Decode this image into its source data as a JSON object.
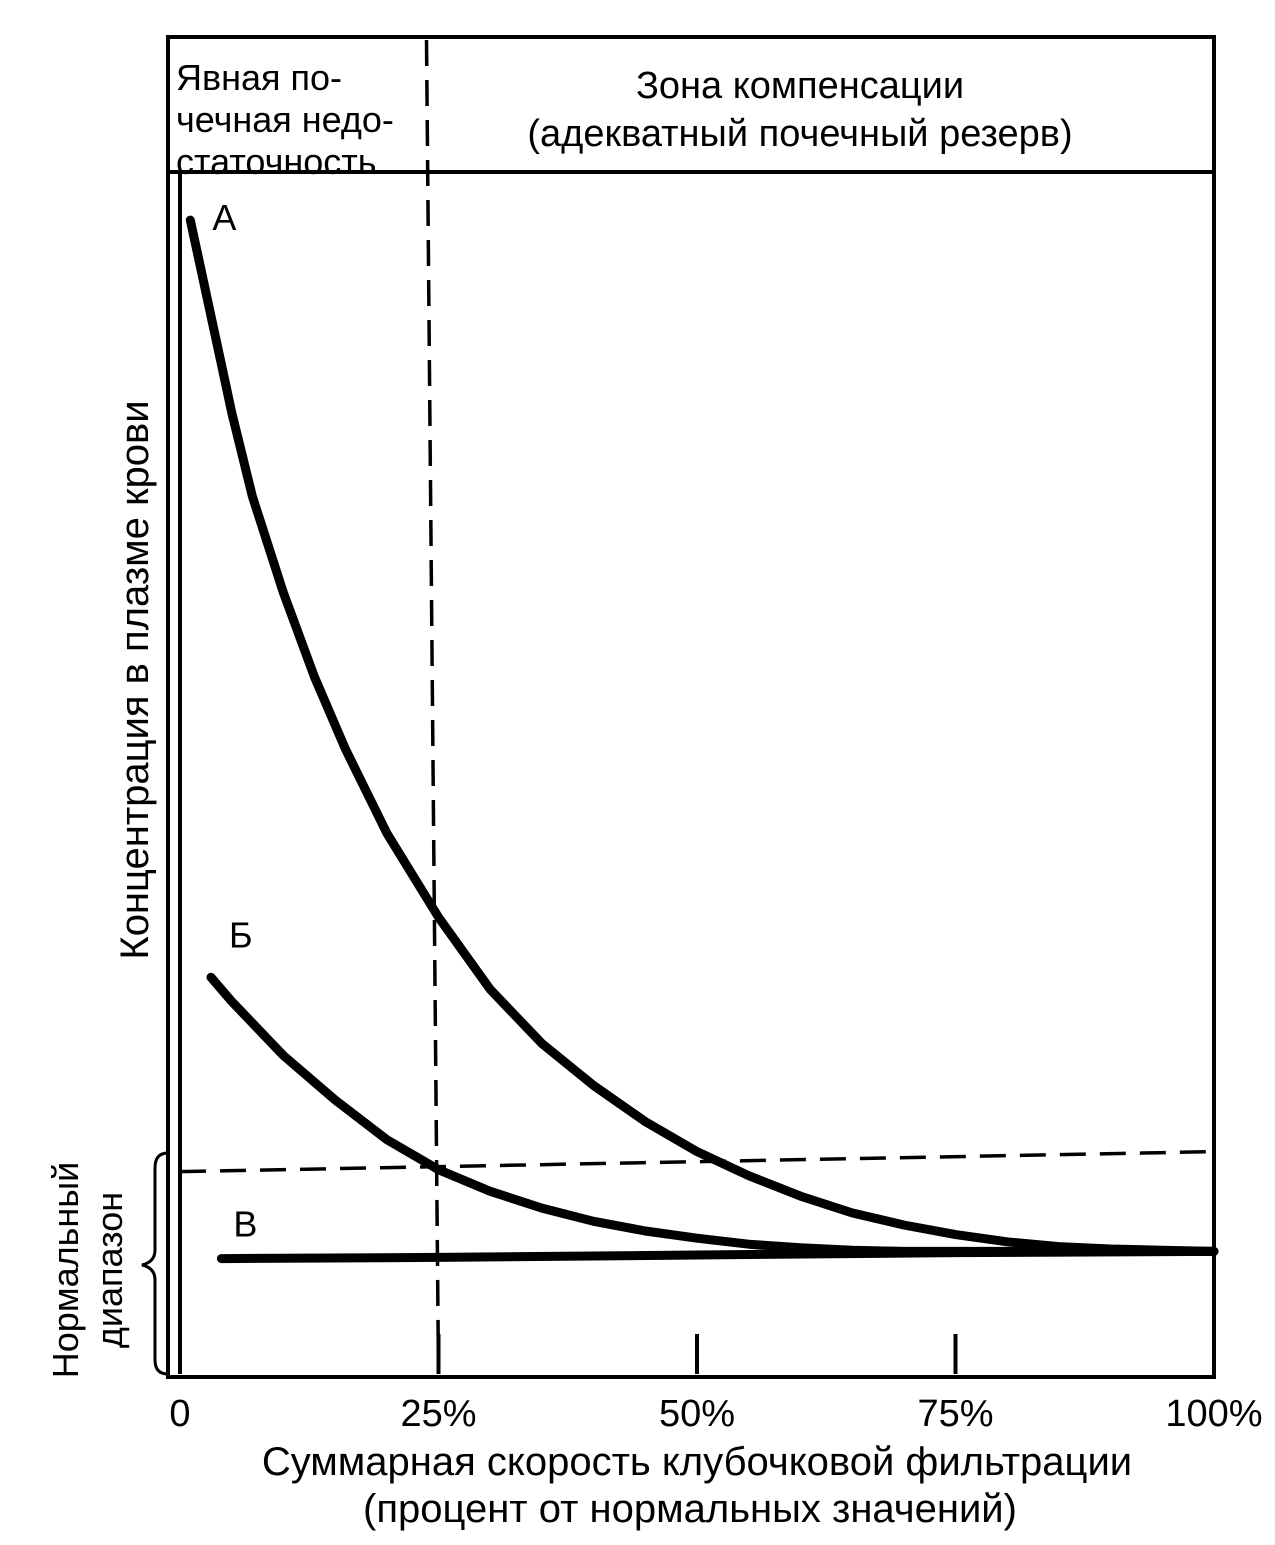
{
  "chart_data": {
    "type": "line",
    "title": "",
    "xlabel_lines": [
      "Суммарная скорость клубочковой фильтрации",
      "(процент от нормальных значений)"
    ],
    "ylabel": "Концентрация в плазме крови",
    "normal_range_label_lines": [
      "Нормальный",
      "диапазон"
    ],
    "x_ticks": [
      {
        "value": 0,
        "label": "0"
      },
      {
        "value": 25,
        "label": "25%"
      },
      {
        "value": 50,
        "label": "50%"
      },
      {
        "value": 75,
        "label": "75%"
      },
      {
        "value": 100,
        "label": "100%"
      }
    ],
    "xlim": [
      0,
      100
    ],
    "ylim": [
      0,
      100
    ],
    "normal_upper_limit": 17.5,
    "zone_divider_x": 25,
    "zones": {
      "failure_lines": [
        "Явная по-",
        "чечная недо-",
        "статочность"
      ],
      "compensation_lines": [
        "Зона компенсации",
        "(адекватный почечный резерв)"
      ]
    },
    "series": [
      {
        "name": "А",
        "x": [
          1,
          2,
          3,
          4,
          5,
          7,
          10,
          13,
          16,
          20,
          25,
          30,
          35,
          40,
          45,
          50,
          55,
          60,
          65,
          70,
          75,
          80,
          85,
          90,
          95,
          100
        ],
        "y": [
          96,
          92,
          88,
          84,
          80,
          73,
          65,
          58,
          52,
          45,
          38,
          32,
          27.5,
          24,
          21,
          18.5,
          16.5,
          14.8,
          13.4,
          12.4,
          11.6,
          11,
          10.6,
          10.4,
          10.3,
          10.2
        ]
      },
      {
        "name": "Б",
        "x": [
          3,
          5,
          10,
          15,
          20,
          25,
          30,
          35,
          40,
          45,
          50,
          55,
          60,
          65,
          70,
          75,
          80,
          85,
          90,
          95,
          100
        ],
        "y": [
          33,
          31,
          26.5,
          22.8,
          19.5,
          17,
          15.2,
          13.8,
          12.7,
          11.9,
          11.3,
          10.8,
          10.5,
          10.3,
          10.2,
          10.2,
          10.2,
          10.2,
          10.2,
          10.2,
          10.2
        ]
      },
      {
        "name": "В",
        "x": [
          4,
          25,
          50,
          75,
          100
        ],
        "y": [
          9.6,
          9.7,
          9.9,
          10.1,
          10.2
        ]
      }
    ]
  }
}
